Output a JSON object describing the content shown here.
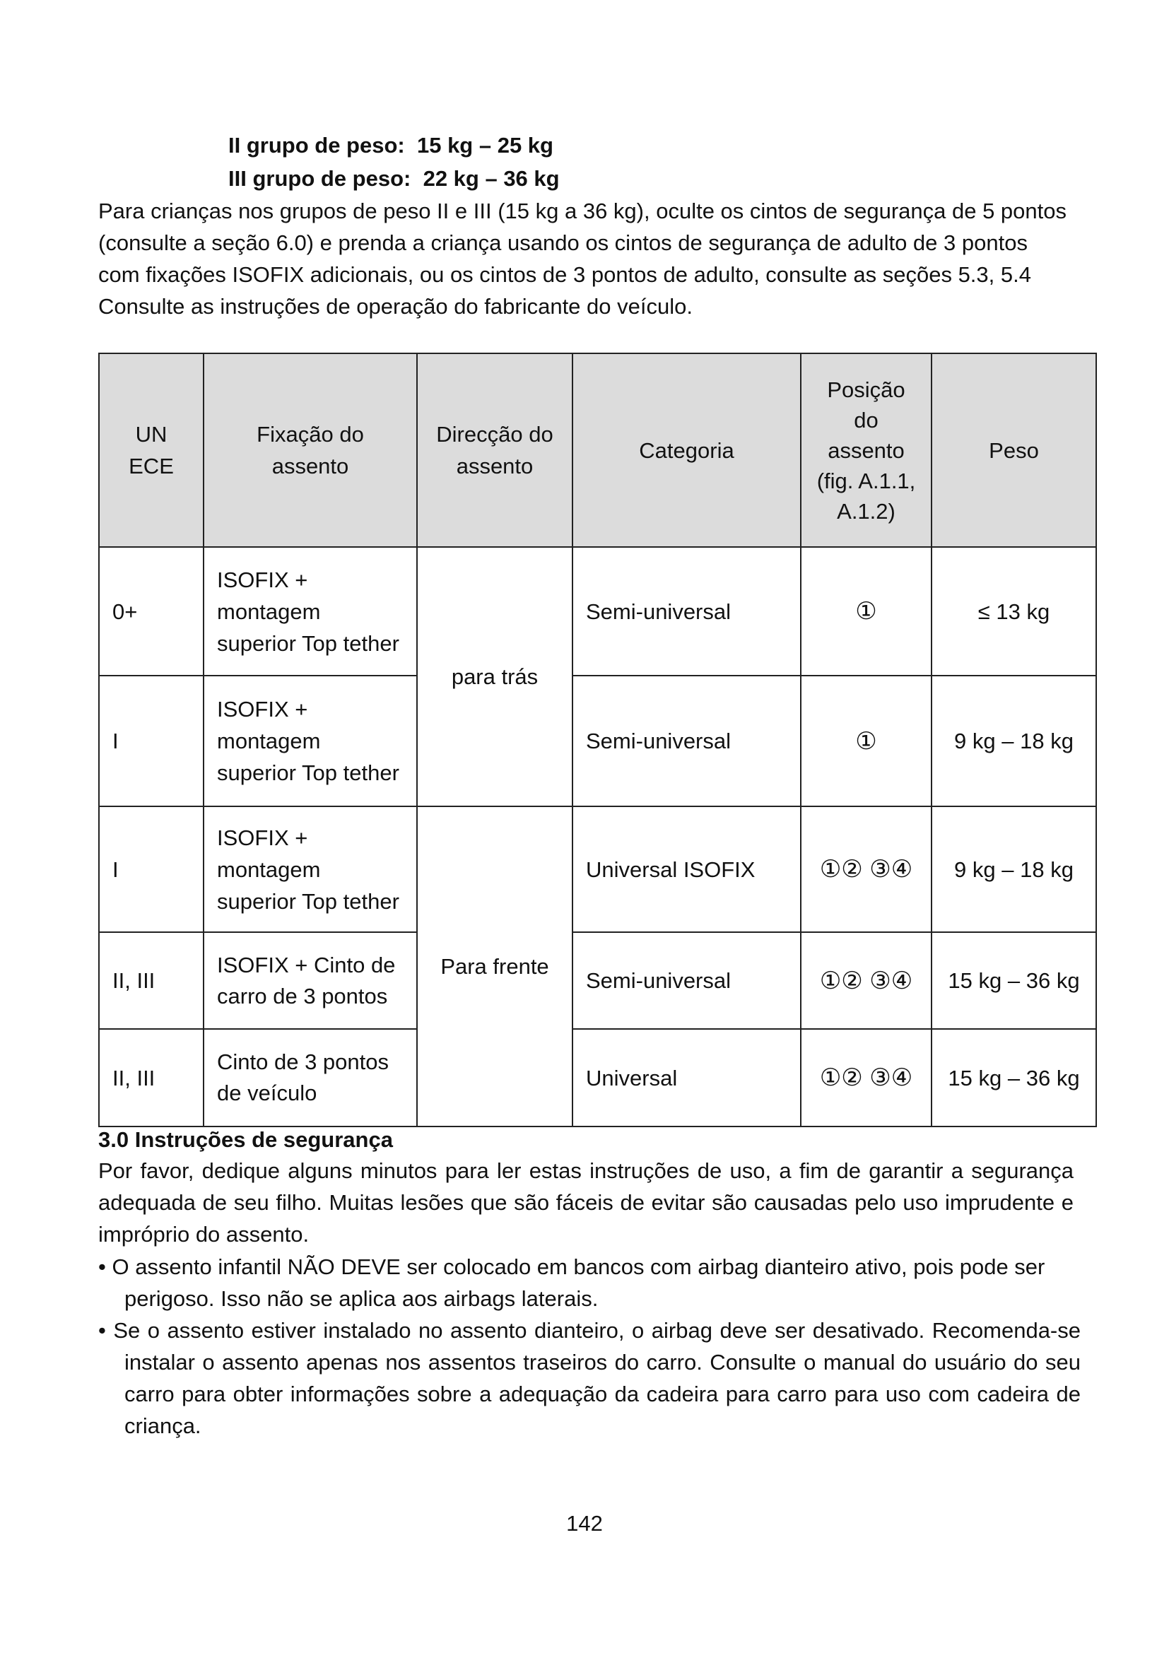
{
  "weight_groups": [
    {
      "label": "II grupo de peso:",
      "value": "15 kg – 25 kg"
    },
    {
      "label": "III grupo de peso:",
      "value": "22 kg – 36 kg"
    }
  ],
  "intro": "Para crianças nos grupos de peso II e III (15 kg a 36 kg), oculte os cintos de segurança de 5 pontos (consulte a seção 6.0) e prenda a criança usando os cintos de segurança de adulto de 3 pontos com fixações ISOFIX adicionais, ou os cintos de 3 pontos de adulto, consulte as seções 5.3, 5.4 Consulte as instruções de operação do fabricante do veículo.",
  "table": {
    "headers": [
      "UN ECE",
      "Fixação do assento",
      "Direcção do assento",
      "Categoria",
      "Posição do assento (fig. A.1.1, A.1.2)",
      "Peso"
    ],
    "directions": [
      "para trás",
      "Para frente"
    ],
    "rows": [
      {
        "group": "0+",
        "fixing": "ISOFIX + montagem superior Top tether",
        "category": "Semi-universal",
        "position": "①",
        "weight": "≤ 13 kg"
      },
      {
        "group": "I",
        "fixing": "ISOFIX + montagem superior Top tether",
        "category": "Semi-universal",
        "position": "①",
        "weight": "9 kg – 18 kg"
      },
      {
        "group": "I",
        "fixing": "ISOFIX + montagem superior Top tether",
        "category": "Universal ISOFIX",
        "position": "①② ③④",
        "weight": "9 kg – 18 kg"
      },
      {
        "group": "II, III",
        "fixing": "ISOFIX + Cinto de carro de 3 pontos",
        "category": "Semi-universal",
        "position": "①② ③④",
        "weight": "15 kg – 36 kg"
      },
      {
        "group": "II, III",
        "fixing": "Cinto de 3 pontos de veículo",
        "category": "Universal",
        "position": "①② ③④",
        "weight": "15 kg – 36 kg"
      }
    ]
  },
  "section": {
    "title": "3.0 Instruções de segurança",
    "body": "Por favor, dedique alguns minutos para ler estas instruções de uso, a fim de garantir a segurança adequada de seu filho. Muitas lesões que são fáceis de evitar são causadas pelo uso imprudente e impróprio do assento.",
    "bullets": [
      "• O assento infantil NÃO DEVE ser colocado em bancos com airbag dianteiro ativo, pois pode ser perigoso. Isso não se aplica aos airbags laterais.",
      "• Se o assento estiver instalado no assento dianteiro, o airbag deve ser desativado. Recomenda-se instalar o assento apenas nos assentos traseiros do carro. Consulte o manual do usuário do seu carro para obter informações sobre a adequação da cadeira para carro para uso com cadeira de criança."
    ]
  },
  "page_number": "142"
}
